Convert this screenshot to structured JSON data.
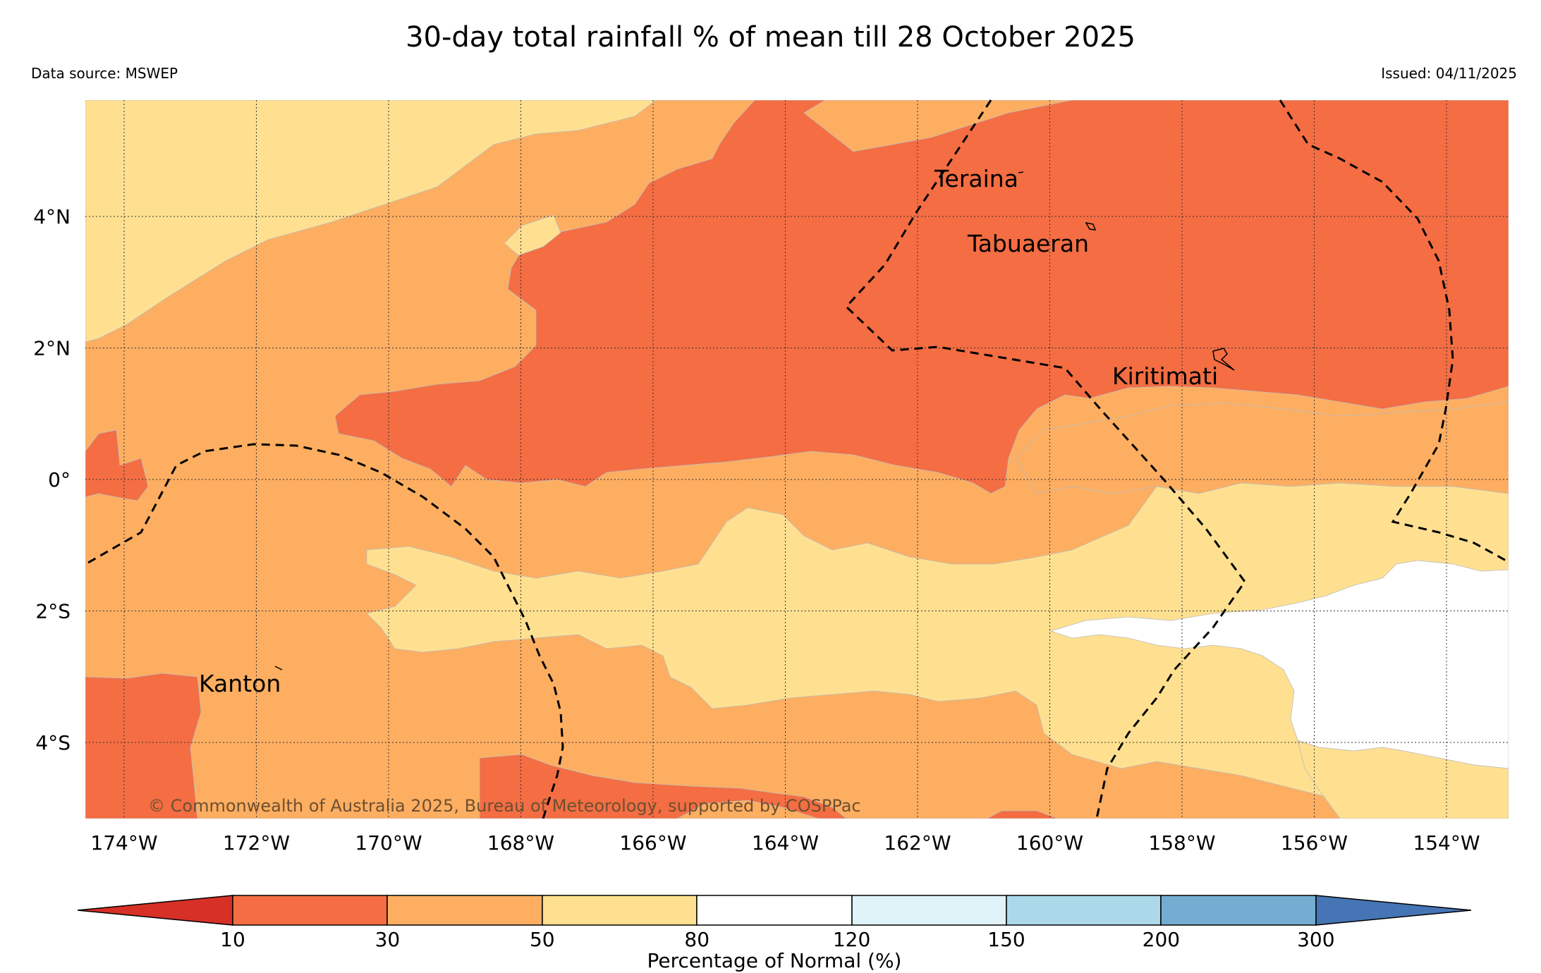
{
  "title": "30-day total rainfall % of mean till 28 October 2025",
  "data_source": "Data source: MSWEP",
  "issued": "Issued: 04/11/2025",
  "copyright": "© Commonwealth of Australia 2025, Bureau of Meteorology, supported by COSPPac",
  "colors": {
    "lt10": "#d73027",
    "c10_30": "#f46d43",
    "c30_50": "#fdae61",
    "c50_80": "#fee090",
    "c80_120": "#ffffff",
    "c120_150": "#e0f3f8",
    "c150_200": "#abd9e9",
    "c200_300": "#74add1",
    "gt300": "#4575b4"
  },
  "map": {
    "lon_labels": [
      "174°W",
      "172°W",
      "170°W",
      "168°W",
      "166°W",
      "164°W",
      "162°W",
      "160°W",
      "158°W",
      "156°W",
      "154°W"
    ],
    "lat_labels": [
      "4°N",
      "2°N",
      "0°",
      "2°S",
      "4°S"
    ],
    "places": [
      "Teraina",
      "Tabuaeran",
      "Kiritimati",
      "Kanton"
    ]
  },
  "colorbar": {
    "ticks": [
      "10",
      "30",
      "50",
      "80",
      "120",
      "150",
      "200",
      "300"
    ],
    "label": "Percentage of Normal (%)"
  }
}
